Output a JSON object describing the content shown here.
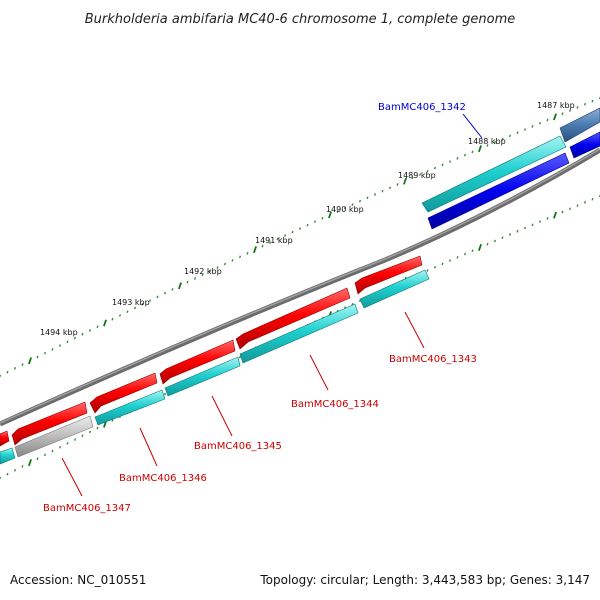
{
  "title": "Burkholderia ambifaria MC40-6 chromosome 1, complete genome",
  "footer": {
    "accession": "Accession: NC_010551",
    "summary": "Topology: circular; Length: 3,443,583 bp; Genes: 3,147"
  },
  "ruler": {
    "ticks": [
      {
        "label": "1487 kbp"
      },
      {
        "label": "1488 kbp"
      },
      {
        "label": "1489 kbp"
      },
      {
        "label": "1490 kbp"
      },
      {
        "label": "1491 kbp"
      },
      {
        "label": "1492 kbp"
      },
      {
        "label": "1493 kbp"
      },
      {
        "label": "1494 kbp"
      }
    ]
  },
  "colors": {
    "forward_cds": "#ee0000",
    "reverse_cds": "#1fd0d0",
    "highlight_gene": "#0000ee",
    "other_gene": "#b0b0b0",
    "upstream_gene": "#4477aa",
    "backbone": "#777777",
    "tick_major": "#117711"
  },
  "genes": [
    {
      "name": "BamMC406_1342",
      "color": "#0000cc"
    },
    {
      "name": "BamMC406_1343",
      "color": "#cc0000"
    },
    {
      "name": "BamMC406_1344",
      "color": "#cc0000"
    },
    {
      "name": "BamMC406_1345",
      "color": "#cc0000"
    },
    {
      "name": "BamMC406_1346",
      "color": "#cc0000"
    },
    {
      "name": "BamMC406_1347",
      "color": "#cc0000"
    }
  ]
}
